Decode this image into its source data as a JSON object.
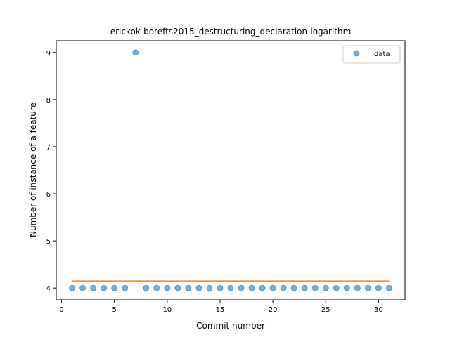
{
  "chart_data": {
    "type": "scatter",
    "title": "erickok-borefts2015_destructuring_declaration-logarithm",
    "xlabel": "Commit number",
    "ylabel": "Number of instance of a feature",
    "xlim": [
      -0.5,
      32.5
    ],
    "ylim": [
      3.75,
      9.25
    ],
    "xticks": [
      0,
      5,
      10,
      15,
      20,
      25,
      30
    ],
    "yticks": [
      4,
      5,
      6,
      7,
      8,
      9
    ],
    "grid": false,
    "legend_position": "top-right",
    "series": [
      {
        "name": "data",
        "kind": "scatter",
        "color": "#1f77b4",
        "x": [
          1,
          2,
          3,
          4,
          5,
          6,
          7,
          8,
          9,
          10,
          11,
          12,
          13,
          14,
          15,
          16,
          17,
          18,
          19,
          20,
          21,
          22,
          23,
          24,
          25,
          26,
          27,
          28,
          29,
          30,
          31
        ],
        "y": [
          4,
          4,
          4,
          4,
          4,
          4,
          9,
          4,
          4,
          4,
          4,
          4,
          4,
          4,
          4,
          4,
          4,
          4,
          4,
          4,
          4,
          4,
          4,
          4,
          4,
          4,
          4,
          4,
          4,
          4,
          4
        ]
      },
      {
        "kind": "line",
        "color": "#ff7f0e",
        "x": [
          1,
          31
        ],
        "y": [
          4.15,
          4.15
        ]
      }
    ]
  }
}
